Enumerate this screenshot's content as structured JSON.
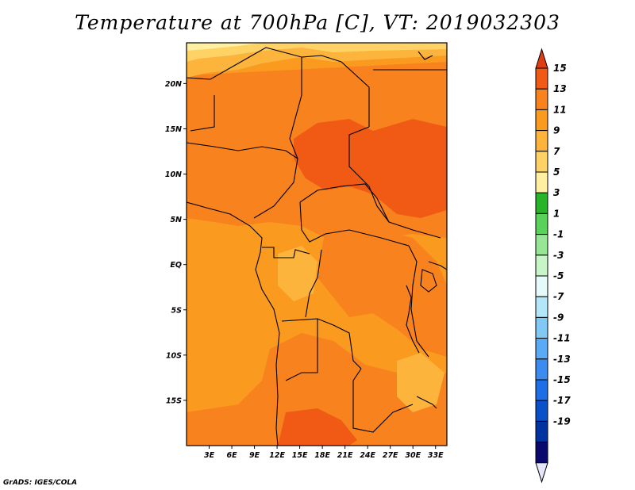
{
  "title": "Temperature at 700hPa [C], VT: 2019032303",
  "credit": "GrADS: IGES/COLA",
  "map": {
    "projection": "lat-lon",
    "lon_range": [
      0,
      34.5
    ],
    "lat_range": [
      -20,
      24.5
    ],
    "lat_ticks": [
      "20N",
      "15N",
      "10N",
      "5N",
      "EQ",
      "5S",
      "10S",
      "15S"
    ],
    "lon_ticks": [
      "3E",
      "6E",
      "9E",
      "12E",
      "15E",
      "18E",
      "21E",
      "24E",
      "27E",
      "30E",
      "33E"
    ],
    "variable": "temperature",
    "level": "700hPa",
    "units": "C",
    "valid_time": "2019032303"
  },
  "colorbar": {
    "labels": [
      "15",
      "13",
      "11",
      "9",
      "7",
      "5",
      "3",
      "1",
      "-1",
      "-3",
      "-5",
      "-7",
      "-9",
      "-11",
      "-13",
      "-15",
      "-17",
      "-19"
    ],
    "colors": [
      "#e03c14",
      "#f05a14",
      "#f8821e",
      "#fa9a1e",
      "#fcb43c",
      "#fed264",
      "#fef0a0",
      "#28b428",
      "#5ad25a",
      "#96e696",
      "#c8f5c8",
      "#e6fafa",
      "#b4e6fa",
      "#82c8f5",
      "#5aaaf5",
      "#3c8cf0",
      "#1e6ee6",
      "#0a50c8",
      "#0032a0",
      "#0a0a6e",
      "#e6e6fa"
    ]
  }
}
